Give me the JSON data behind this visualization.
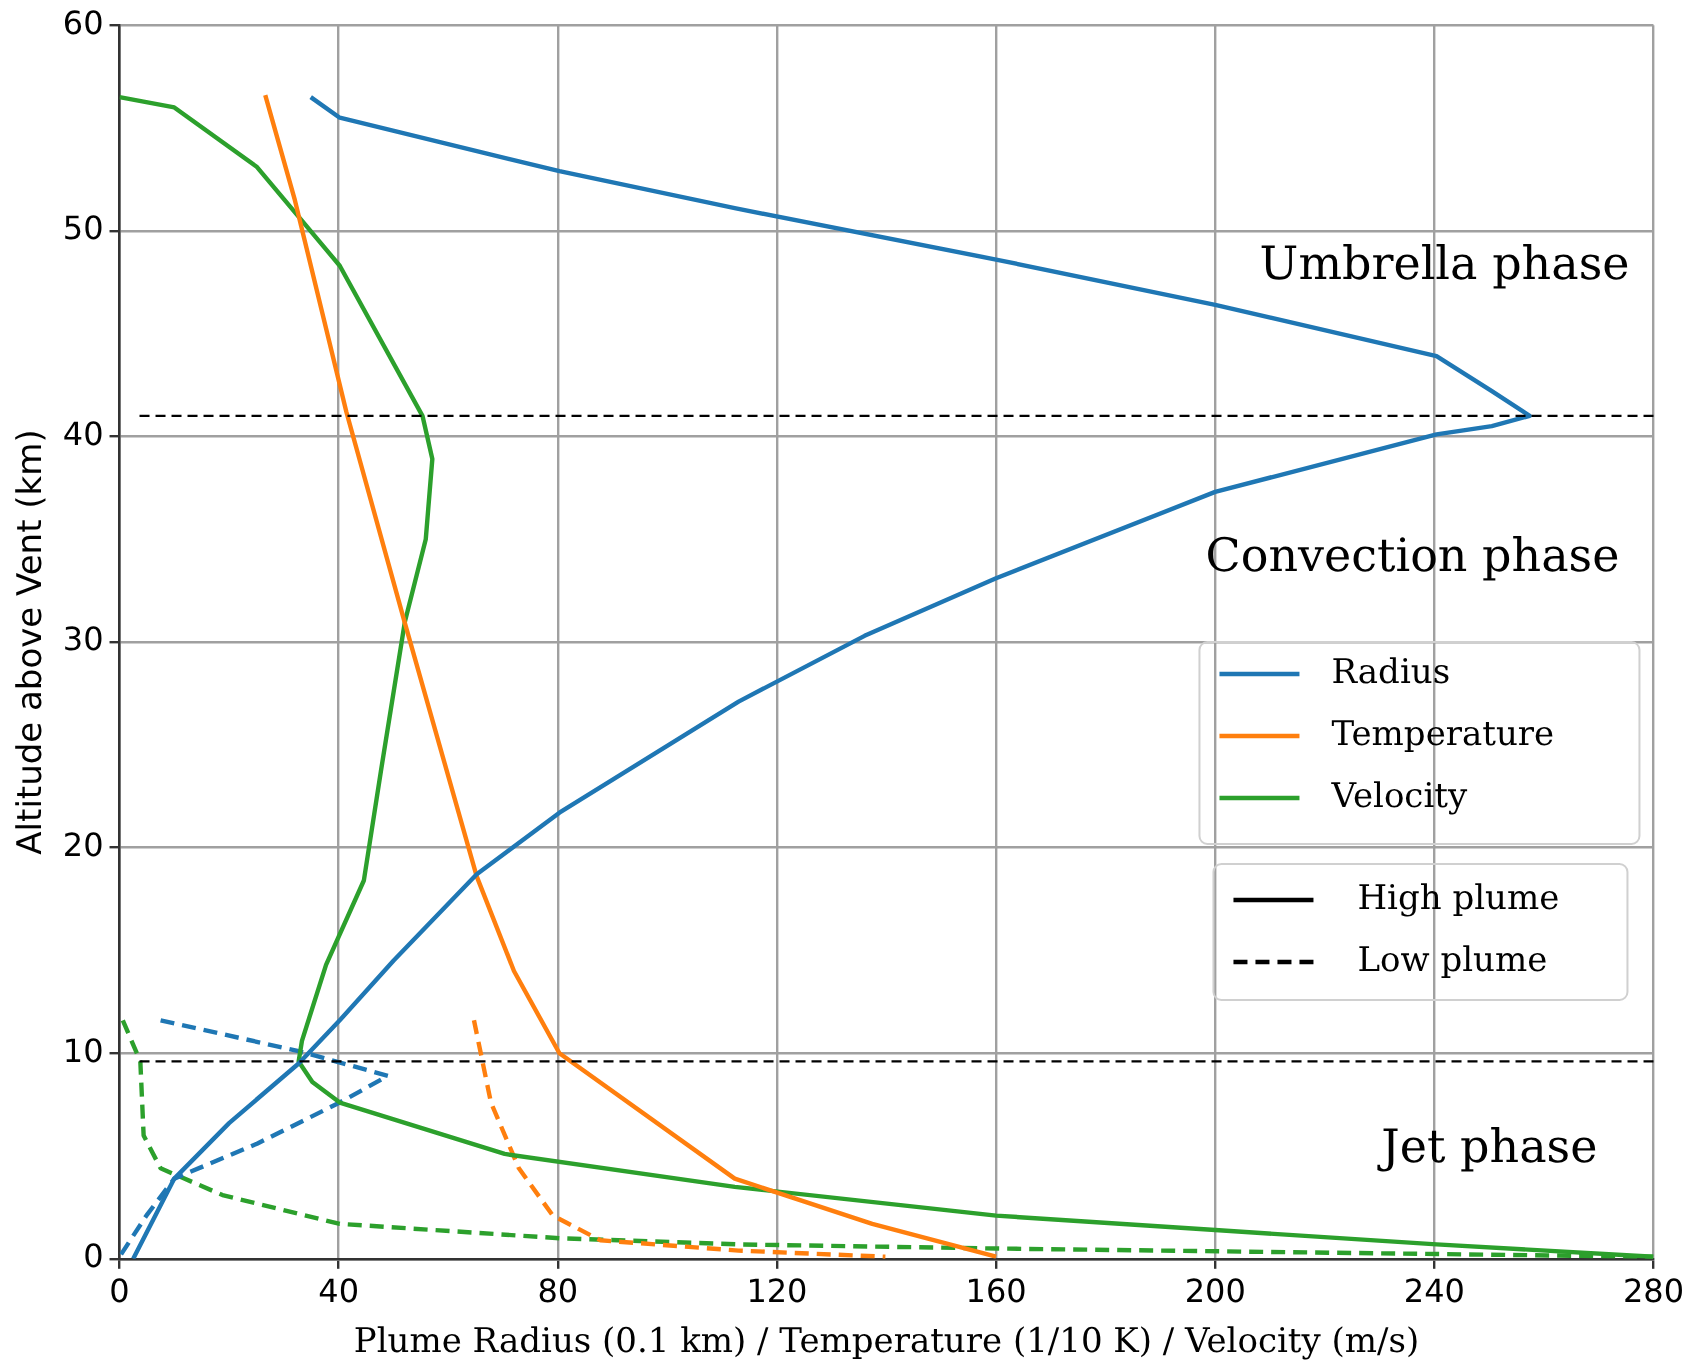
{
  "chart_data": {
    "type": "line",
    "xlabel": "Plume Radius (0.1 km) / Temperature (1/10 K) / Velocity (m/s)",
    "ylabel": "Altitude above Vent (km)",
    "xlim": [
      0,
      280
    ],
    "xticks": [
      0,
      40,
      80,
      120,
      160,
      200,
      240,
      280
    ],
    "ylim": [
      0,
      60
    ],
    "yticks": [
      0,
      10,
      20,
      30,
      40,
      50,
      60
    ],
    "grid": true,
    "legend": "right",
    "marker": "none",
    "series": [
      {
        "name": "Radius",
        "color": "#1f77b4",
        "line_style": "solid",
        "x": [
          2.5,
          10,
          20,
          32.7,
          40.2,
          50,
          65.2,
          80.3,
          113,
          136,
          160,
          200,
          240.4,
          250.5,
          257.4,
          250.5,
          240.4,
          200,
          160,
          112.3,
          80.3,
          40.2,
          34.9
        ],
        "values": [
          0,
          3.9,
          6.6,
          9.5,
          11.6,
          14.5,
          18.7,
          21.7,
          27.1,
          30.3,
          33.1,
          37.3,
          40.1,
          40.5,
          41.0,
          42.2,
          43.9,
          46.4,
          48.6,
          51.1,
          52.9,
          55.5,
          56.5
        ]
      },
      {
        "name": "Temperature",
        "color": "#ff7f0e",
        "line_style": "solid",
        "x": [
          26.6,
          32,
          41.4,
          52,
          65.2,
          72,
          80.3,
          112.3,
          137.4,
          160
        ],
        "values": [
          56.6,
          51.5,
          41.2,
          31,
          18.6,
          14,
          10.0,
          3.9,
          1.7,
          0.1
        ]
      },
      {
        "name": "Velocity",
        "color": "#2ca02c",
        "line_style": "solid",
        "x": [
          0,
          10,
          25.1,
          40.2,
          55.3,
          57.1,
          55.9,
          52.1,
          47.7,
          44.6,
          37.7,
          33.3,
          32.7,
          35.2,
          40.2,
          70.3,
          112.3,
          160,
          200,
          240.4,
          280
        ],
        "values": [
          56.5,
          56.0,
          53.1,
          48.3,
          41.0,
          38.9,
          35,
          31.0,
          23.7,
          18.4,
          14.3,
          10.6,
          9.6,
          8.6,
          7.6,
          5.1,
          3.5,
          2.1,
          1.4,
          0.7,
          0.1
        ]
      },
      {
        "color": "#1f77b4",
        "line_style": "dashed",
        "x": [
          7.5,
          32.7,
          49,
          40.2,
          25.1,
          10,
          4.9,
          0
        ],
        "values": [
          11.6,
          10.1,
          8.9,
          7.6,
          5.6,
          3.9,
          2.1,
          0.1
        ]
      },
      {
        "color": "#ff7f0e",
        "line_style": "dashed",
        "x": [
          64.7,
          67.8,
          72.9,
          79.1,
          87.8,
          113,
          139.8
        ],
        "values": [
          11.6,
          7.6,
          4.4,
          2.1,
          0.9,
          0.4,
          0.1
        ]
      },
      {
        "color": "#2ca02c",
        "line_style": "dashed",
        "x": [
          0.6,
          3.8,
          4.4,
          7.5,
          18.8,
          40.2,
          80.3,
          113,
          160,
          280
        ],
        "values": [
          11.6,
          9.6,
          6.0,
          4.4,
          3.1,
          1.7,
          1.0,
          0.7,
          0.5,
          0.1
        ]
      }
    ],
    "ref_lines": [
      {
        "axis": "y",
        "value": 41.0,
        "color": "#000000",
        "line_style": "dashed"
      },
      {
        "axis": "y",
        "value": 9.6,
        "color": "#000000",
        "line_style": "dashed"
      }
    ],
    "annotations": [
      "Umbrella phase",
      "Convection phase",
      "Jet phase",
      "High plume",
      "Low plume"
    ]
  }
}
